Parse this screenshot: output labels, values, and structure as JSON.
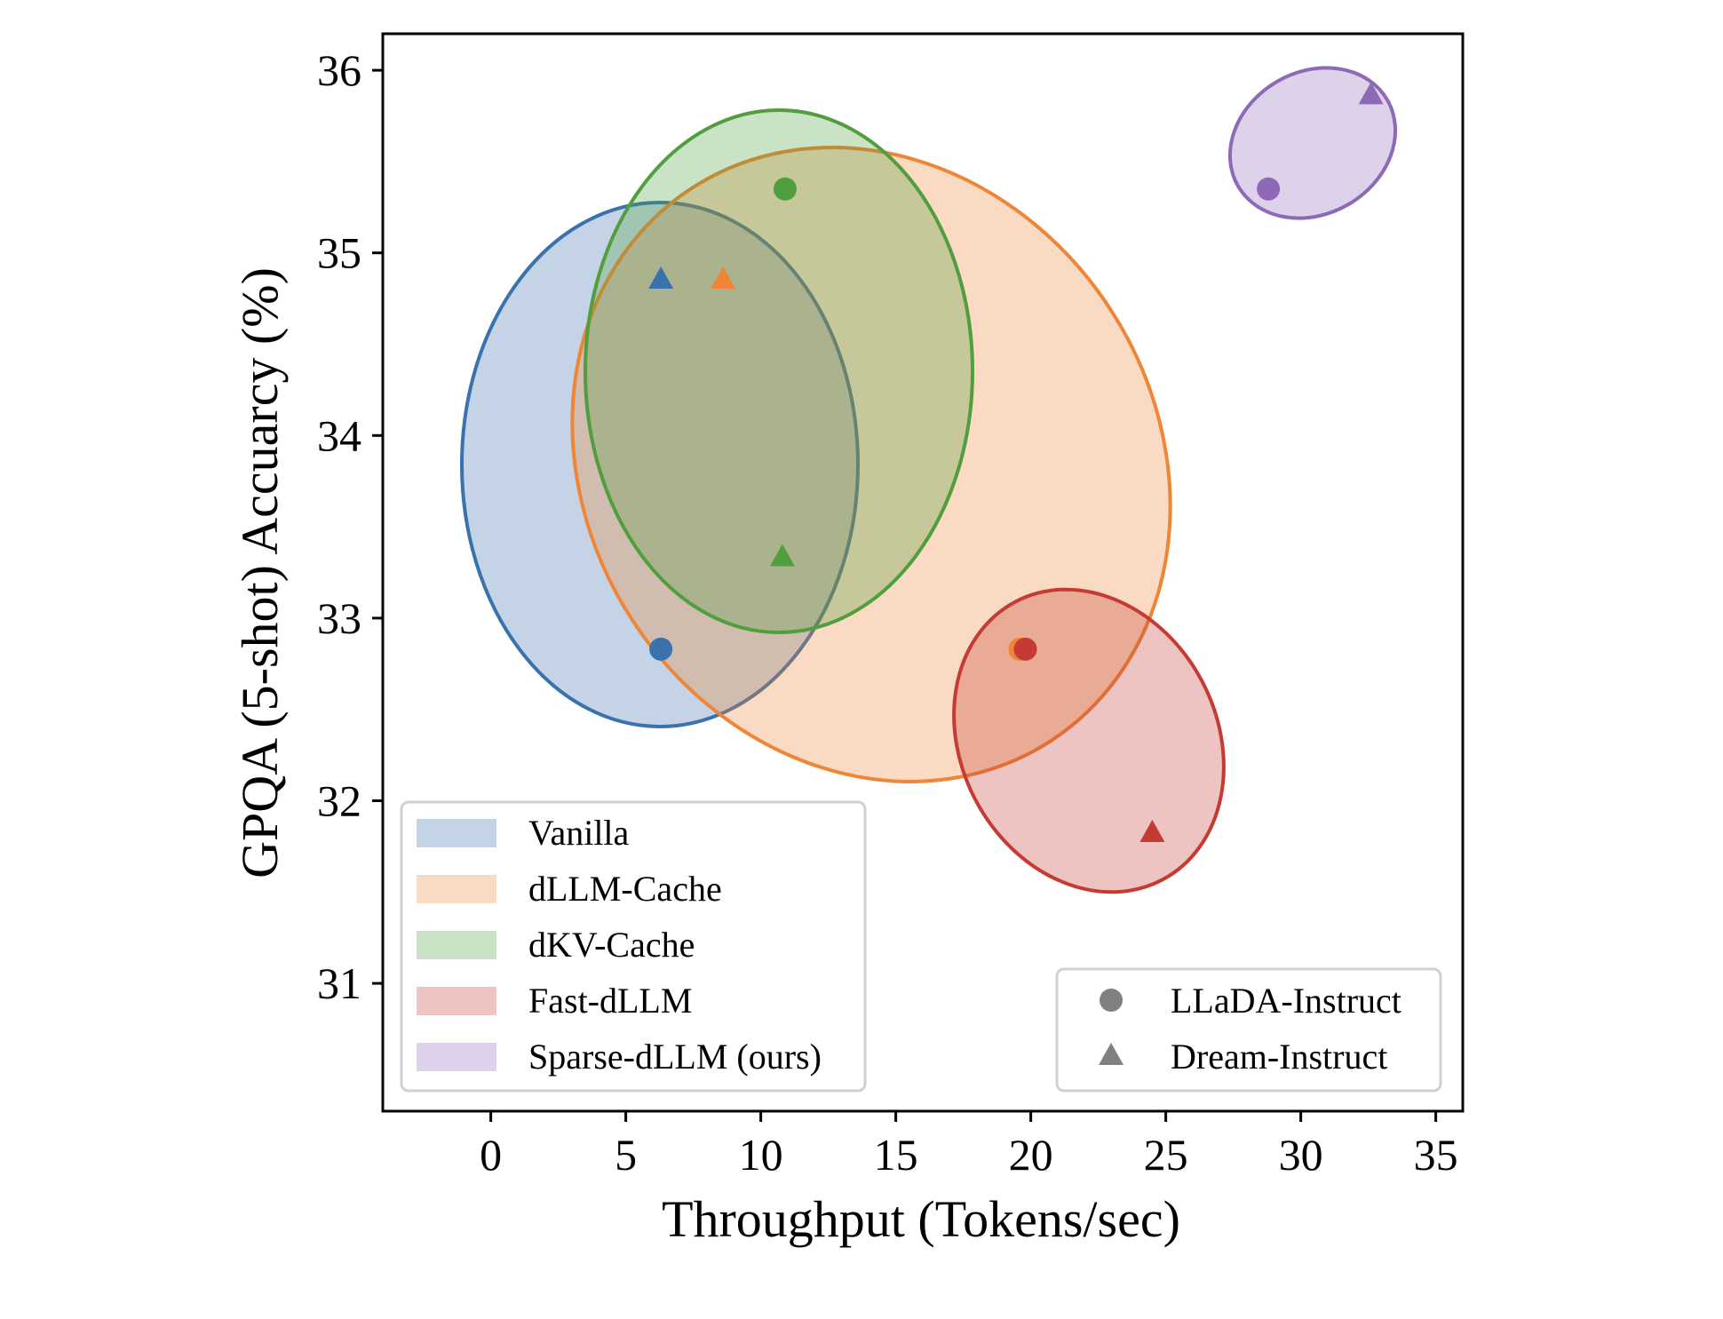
{
  "chart_data": {
    "type": "scatter",
    "title": "",
    "xlabel": "Throughput (Tokens/sec)",
    "ylabel": "GPQA (5-shot) Accuarcy (%)",
    "xlim": [
      -4,
      36
    ],
    "ylim": [
      30.3,
      36.2
    ],
    "xticks": [
      "0",
      "5",
      "10",
      "15",
      "20",
      "25",
      "30",
      "35"
    ],
    "yticks": [
      "31",
      "32",
      "33",
      "34",
      "35",
      "36"
    ],
    "grid": false,
    "series": [
      {
        "name": "Vanilla",
        "color": "#3a72ad",
        "points": [
          {
            "model": "LLaDA-Instruct",
            "x": 6.3,
            "y": 32.83
          },
          {
            "model": "Dream-Instruct",
            "x": 6.3,
            "y": 34.85
          }
        ]
      },
      {
        "name": "dLLM-Cache",
        "color": "#ef8536",
        "points": [
          {
            "model": "LLaDA-Instruct",
            "x": 19.6,
            "y": 32.83
          },
          {
            "model": "Dream-Instruct",
            "x": 8.6,
            "y": 34.85
          }
        ]
      },
      {
        "name": "dKV-Cache",
        "color": "#519e3e",
        "points": [
          {
            "model": "LLaDA-Instruct",
            "x": 10.9,
            "y": 35.35
          },
          {
            "model": "Dream-Instruct",
            "x": 10.8,
            "y": 33.33
          }
        ]
      },
      {
        "name": "Fast-dLLM",
        "color": "#c53a32",
        "points": [
          {
            "model": "LLaDA-Instruct",
            "x": 19.8,
            "y": 32.83
          },
          {
            "model": "Dream-Instruct",
            "x": 24.5,
            "y": 31.82
          }
        ]
      },
      {
        "name": "Sparse-dLLM (ours)",
        "color": "#8d69b8",
        "points": [
          {
            "model": "LLaDA-Instruct",
            "x": 28.8,
            "y": 35.35
          },
          {
            "model": "Dream-Instruct",
            "x": 32.6,
            "y": 35.86
          }
        ]
      }
    ],
    "marker_legend": [
      {
        "label": "LLaDA-Instruct",
        "marker": "circle"
      },
      {
        "label": "Dream-Instruct",
        "marker": "triangle"
      }
    ],
    "legend_position": "lower-left",
    "marker_legend_position": "lower-right"
  }
}
